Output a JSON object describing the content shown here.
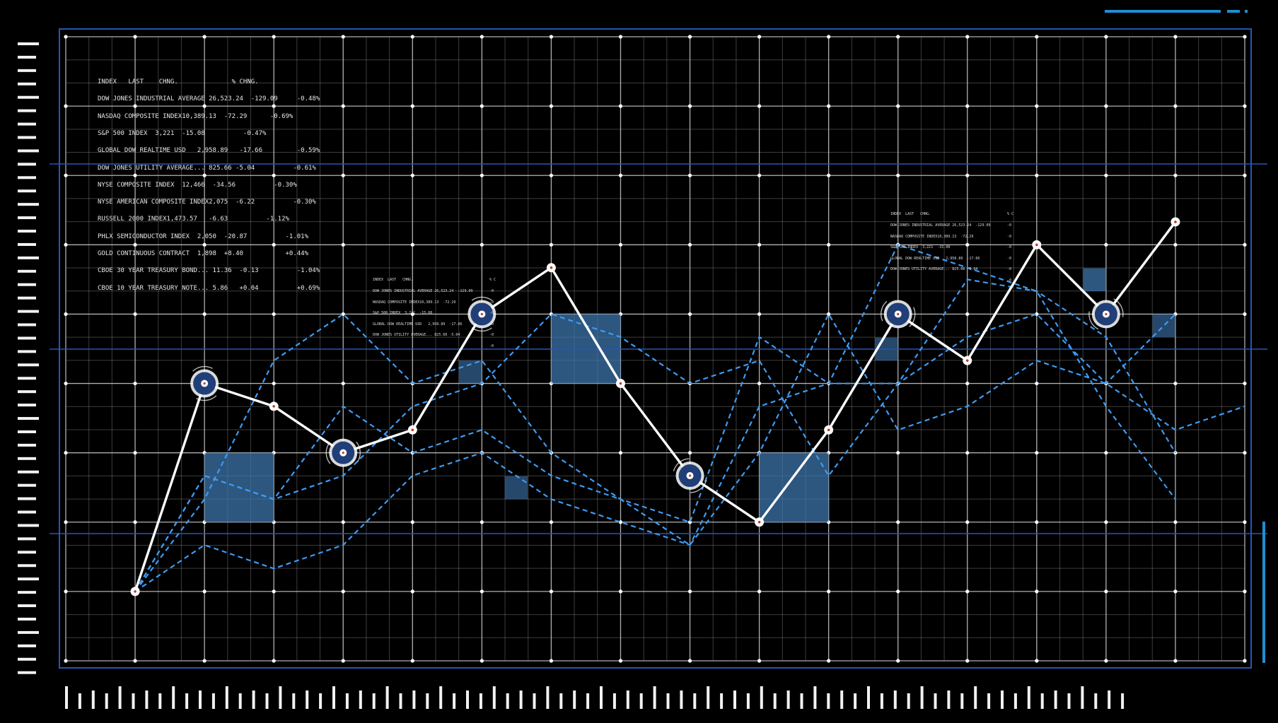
{
  "colors": {
    "background": "#000000",
    "grid": "#d9d9d9",
    "frame": "#2456b8",
    "accent_line": "#1f8fd0",
    "main_series": "#ffffff",
    "dashed_series": "#3e9bf2",
    "highlight_box": "#3f78b0",
    "marker_fill": "#203f78"
  },
  "tickers": {
    "main": {
      "header": "INDEX   LAST    CHNG.              % CHNG.",
      "rows": [
        "DOW JONES INDUSTRIAL AVERAGE 26,523.24  -129.09     -0.48%",
        "NASDAQ COMPOSITE INDEX10,389.13  -72.29      -0.69%",
        "S&P 500 INDEX  3,221  -15.08          -0.47%",
        "GLOBAL DOW REALTIME USD   2,958.89   -17.66         -0.59%",
        "DOW JONES UTILITY AVERAGE... 825.66 -5.04          -0.61%",
        "NYSE COMPOSITE INDEX  12,466  -34.56          -0.30%",
        "NYSE AMERICAN COMPOSITE INDEX2,075  -6.22          -0.30%",
        "RUSSELL 2000 INDEX1,473.57   -6.63          -1.12%",
        "PHLX SEMICONDUCTOR INDEX  2,050  -20.87          -1.01%",
        "GOLD CONTINUOUS CONTRACT  1,898  +8.40           +0.44%",
        "CBOE 30 YEAR TREASURY BOND... 11.36  -0.13          -1.04%",
        "CBOE 10 YEAR TREASURY NOTE... 5.86   +0.04          +0.69%"
      ]
    },
    "mid": {
      "header": "INDEX  LAST   CHNG.",
      "rows": [
        "DOW JONES INDUSTRIAL AVERAGE 26,523.24  -129.09",
        "NASDAQ COMPOSITE INDEX10,389.13  -72.29",
        "S&P 500 INDEX  3,221  -15.08",
        "GLOBAL DOW REALTIME USD   2,958.89  -17.66",
        "DOW JONES UTILITY AVERAGE... 825.66 -5.04"
      ],
      "pct_header": "% C",
      "pct_rows": [
        "-0",
        "-0",
        "-0",
        "-0",
        "-0",
        "-0"
      ]
    },
    "right": {
      "header": "INDEX  LAST   CHNG.",
      "rows": [
        "DOW JONES INDUSTRIAL AVERAGE 26,523.24  -129.09",
        "NASDAQ COMPOSITE INDEX10,389.13  -72.29",
        "S&P 500 INDEX  3,221  -15.08",
        "GLOBAL DOW REALTIME USD   2,958.89  -17.66",
        "DOW JONES UTILITY AVERAGE... 825.66 -5.04"
      ],
      "pct_header": "% C",
      "pct_rows": [
        "-0",
        "-0",
        "-0",
        "-0",
        "-0",
        "-0"
      ]
    }
  },
  "chart_data": {
    "type": "line",
    "title": "",
    "xlabel": "",
    "ylabel": "",
    "grid": true,
    "xlim": [
      0,
      17
    ],
    "ylim": [
      0,
      9
    ],
    "x": [
      1,
      2,
      3,
      4,
      5,
      6,
      7,
      8,
      9,
      10,
      11,
      12,
      13,
      14,
      15,
      16,
      17
    ],
    "series": [
      {
        "style": "solid",
        "values": [
          1,
          4,
          3.67,
          3,
          3.33,
          5,
          5.67,
          4,
          2.67,
          2,
          3.33,
          5,
          4.33,
          6,
          5,
          6.33,
          null
        ],
        "highlighted": [
          2,
          4,
          6,
          9,
          12,
          15
        ]
      },
      {
        "style": "dashed",
        "values": [
          1,
          2.67,
          2.33,
          2.67,
          3.67,
          4,
          5,
          4.67,
          4,
          4.33,
          2.67,
          4,
          5.5,
          5.33,
          4.67,
          3,
          null
        ]
      },
      {
        "style": "dashed",
        "values": [
          1,
          2.33,
          4.33,
          5,
          4,
          4.33,
          3,
          2.33,
          2,
          4.67,
          4,
          4,
          4.67,
          5,
          4,
          5,
          null
        ]
      },
      {
        "style": "dashed",
        "values": [
          1,
          1.67,
          1.33,
          1.67,
          2.67,
          3,
          2.33,
          2,
          1.67,
          3.67,
          4,
          6,
          5.67,
          5.33,
          3.67,
          2.33,
          null
        ]
      },
      {
        "style": "dashed",
        "values": [
          1,
          2.67,
          2.33,
          3.67,
          3,
          3.33,
          2.67,
          2.33,
          1.67,
          3,
          5,
          3.33,
          3.67,
          4.33,
          4,
          3.33,
          3.67
        ]
      }
    ]
  }
}
